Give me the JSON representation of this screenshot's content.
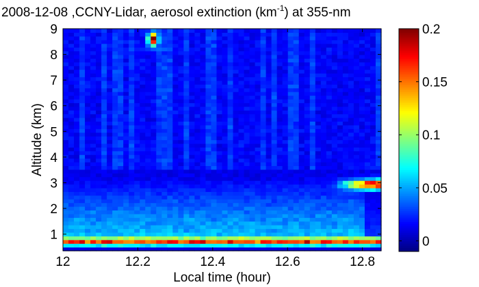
{
  "chart_data": {
    "type": "heatmap",
    "title_parts": {
      "before": "2008-12-08 ,CCNY-Lidar, aerosol extinction (km",
      "sup": "-1",
      "after": ") at 355-nm"
    },
    "xlabel": "Local time (hour)",
    "ylabel": "Altitude (km)",
    "xlim": [
      12,
      12.85
    ],
    "ylim": [
      0.35,
      9
    ],
    "x_ticks": [
      12,
      12.2,
      12.4,
      12.6,
      12.8
    ],
    "x_tick_labels": [
      "12",
      "12.2",
      "12.4",
      "12.6",
      "12.8"
    ],
    "y_ticks": [
      1,
      2,
      3,
      4,
      5,
      6,
      7,
      8,
      9
    ],
    "y_tick_labels": [
      "1",
      "2",
      "3",
      "4",
      "5",
      "6",
      "7",
      "8",
      "9"
    ],
    "colorbar": {
      "range": [
        -0.01,
        0.2
      ],
      "ticks": [
        0,
        0.05,
        0.1,
        0.15,
        0.2
      ],
      "tick_labels": [
        "0",
        "0.05",
        "0.1",
        "0.15",
        "0.2"
      ],
      "colormap": "jet"
    },
    "grid": false,
    "features": [
      {
        "altitude": 0.75,
        "value": 0.12
      },
      {
        "altitude": 2.0,
        "value": 0.05
      },
      {
        "time": 12.24,
        "altitude": 8.6,
        "value": 0.19
      },
      {
        "time": 12.83,
        "altitude": 2.95,
        "value": 0.2
      }
    ]
  }
}
